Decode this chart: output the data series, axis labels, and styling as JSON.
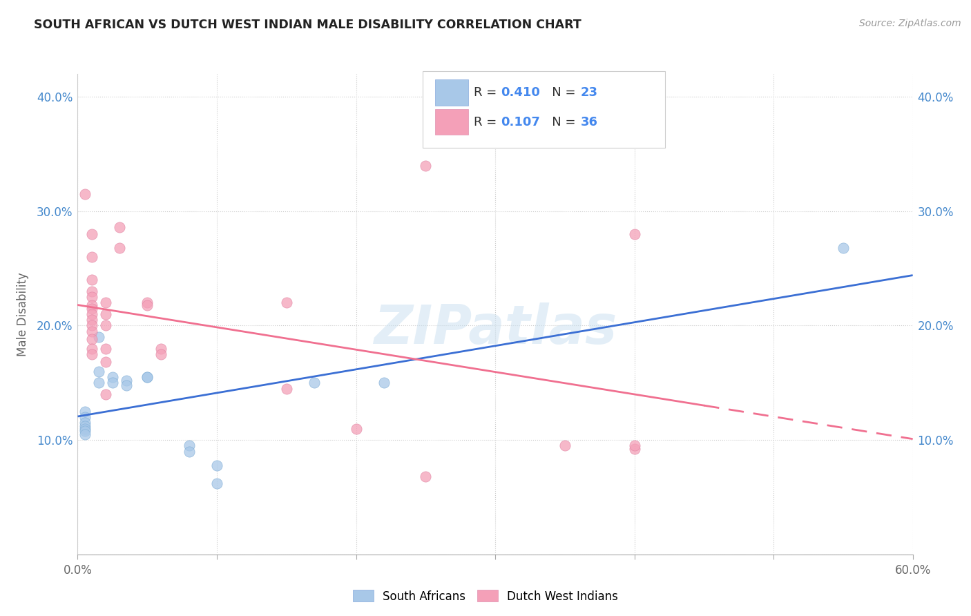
{
  "title": "SOUTH AFRICAN VS DUTCH WEST INDIAN MALE DISABILITY CORRELATION CHART",
  "source": "Source: ZipAtlas.com",
  "ylabel": "Male Disability",
  "xlim": [
    0.0,
    0.6
  ],
  "ylim": [
    0.0,
    0.42
  ],
  "xticks": [
    0.0,
    0.1,
    0.2,
    0.3,
    0.4,
    0.5,
    0.6
  ],
  "yticks": [
    0.0,
    0.1,
    0.2,
    0.3,
    0.4
  ],
  "xtick_labels": [
    "0.0%",
    "",
    "",
    "",
    "",
    "",
    "60.0%"
  ],
  "ytick_labels_left": [
    "",
    "10.0%",
    "20.0%",
    "30.0%",
    "40.0%"
  ],
  "ytick_labels_right": [
    "",
    "10.0%",
    "20.0%",
    "30.0%",
    "40.0%"
  ],
  "sa_color": "#a8c8e8",
  "dwi_color": "#f4a0b8",
  "sa_line_color": "#3b6fd4",
  "dwi_line_color": "#f07090",
  "sa_R": 0.41,
  "sa_N": 23,
  "dwi_R": 0.107,
  "dwi_N": 36,
  "sa_scatter": [
    [
      0.005,
      0.125
    ],
    [
      0.005,
      0.12
    ],
    [
      0.005,
      0.115
    ],
    [
      0.005,
      0.112
    ],
    [
      0.005,
      0.11
    ],
    [
      0.005,
      0.108
    ],
    [
      0.005,
      0.105
    ],
    [
      0.015,
      0.19
    ],
    [
      0.015,
      0.16
    ],
    [
      0.015,
      0.15
    ],
    [
      0.025,
      0.155
    ],
    [
      0.025,
      0.15
    ],
    [
      0.035,
      0.152
    ],
    [
      0.035,
      0.148
    ],
    [
      0.05,
      0.155
    ],
    [
      0.05,
      0.155
    ],
    [
      0.08,
      0.095
    ],
    [
      0.08,
      0.09
    ],
    [
      0.1,
      0.078
    ],
    [
      0.1,
      0.062
    ],
    [
      0.17,
      0.15
    ],
    [
      0.22,
      0.15
    ],
    [
      0.55,
      0.268
    ]
  ],
  "dwi_scatter": [
    [
      0.005,
      0.315
    ],
    [
      0.01,
      0.28
    ],
    [
      0.01,
      0.26
    ],
    [
      0.01,
      0.24
    ],
    [
      0.01,
      0.23
    ],
    [
      0.01,
      0.225
    ],
    [
      0.01,
      0.218
    ],
    [
      0.01,
      0.215
    ],
    [
      0.01,
      0.21
    ],
    [
      0.01,
      0.205
    ],
    [
      0.01,
      0.2
    ],
    [
      0.01,
      0.195
    ],
    [
      0.01,
      0.188
    ],
    [
      0.01,
      0.18
    ],
    [
      0.01,
      0.175
    ],
    [
      0.02,
      0.22
    ],
    [
      0.02,
      0.21
    ],
    [
      0.02,
      0.2
    ],
    [
      0.02,
      0.18
    ],
    [
      0.02,
      0.168
    ],
    [
      0.02,
      0.14
    ],
    [
      0.03,
      0.286
    ],
    [
      0.03,
      0.268
    ],
    [
      0.05,
      0.22
    ],
    [
      0.05,
      0.218
    ],
    [
      0.06,
      0.18
    ],
    [
      0.06,
      0.175
    ],
    [
      0.15,
      0.22
    ],
    [
      0.15,
      0.145
    ],
    [
      0.2,
      0.11
    ],
    [
      0.25,
      0.34
    ],
    [
      0.25,
      0.068
    ],
    [
      0.35,
      0.095
    ],
    [
      0.4,
      0.092
    ],
    [
      0.4,
      0.28
    ],
    [
      0.4,
      0.095
    ]
  ],
  "background_color": "#ffffff",
  "grid_color": "#cccccc",
  "watermark": "ZIPatlas",
  "legend_label1": "South Africans",
  "legend_label2": "Dutch West Indians"
}
